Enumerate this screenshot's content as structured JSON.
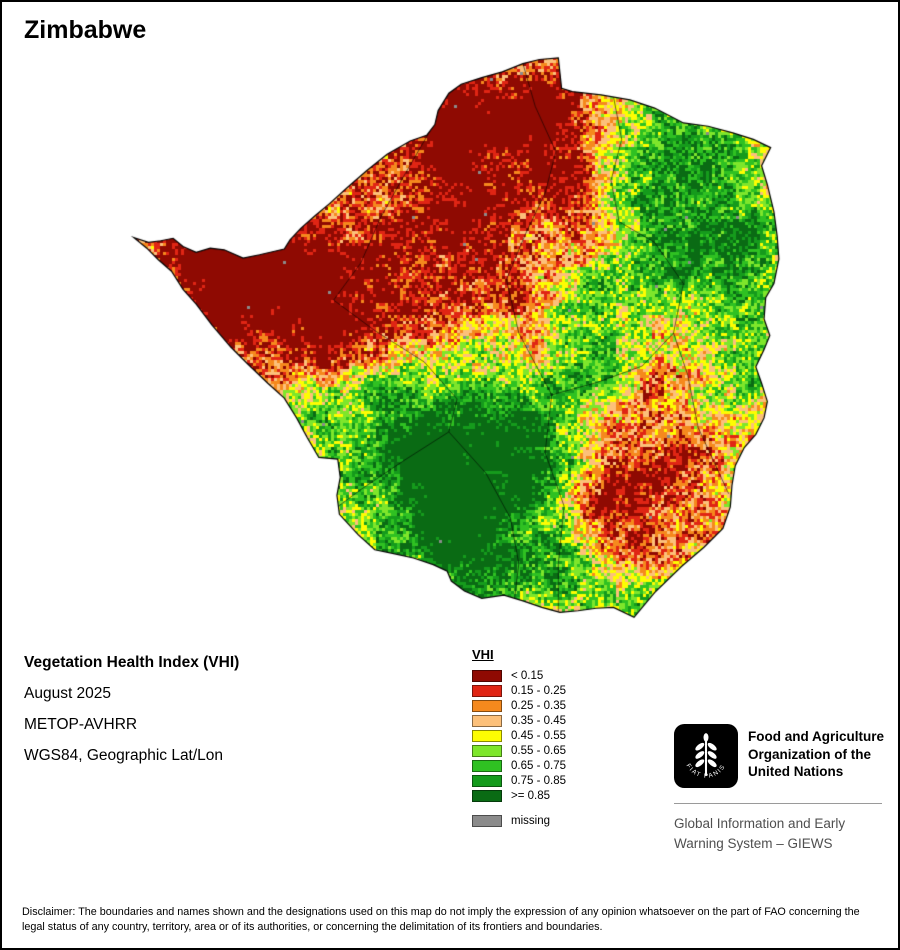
{
  "page": {
    "title": "Zimbabwe"
  },
  "info": {
    "layer_title": "Vegetation Health Index (VHI)",
    "date": "August 2025",
    "sensor": "METOP-AVHRR",
    "projection": "WGS84, Geographic Lat/Lon"
  },
  "legend": {
    "title": "VHI",
    "items": [
      {
        "label": "< 0.15",
        "color": "#8f0a02"
      },
      {
        "label": "0.15 - 0.25",
        "color": "#e02514"
      },
      {
        "label": "0.25 - 0.35",
        "color": "#f5891d"
      },
      {
        "label": "0.35 - 0.45",
        "color": "#fcc07a"
      },
      {
        "label": "0.45 - 0.55",
        "color": "#fdfd02"
      },
      {
        "label": "0.55 - 0.65",
        "color": "#7ee62b"
      },
      {
        "label": "0.65 - 0.75",
        "color": "#2fc122"
      },
      {
        "label": "0.75 - 0.85",
        "color": "#159b1c"
      },
      {
        "label": ">= 0.85",
        "color": "#0a6b14"
      }
    ],
    "missing": {
      "label": "missing",
      "color": "#8b8b8b"
    }
  },
  "branding": {
    "logo_motto": "FIAT PANIS",
    "org_lines": [
      "Food and Agriculture",
      "Organization of the",
      "United Nations"
    ],
    "giews_lines": [
      "Global Information and Early",
      "Warning System – GIEWS"
    ]
  },
  "disclaimer": "Disclaimer: The boundaries and names shown and the designations used on this map do not imply the expression of any opinion whatsoever on the part of FAO concerning the legal status of any country, territory, area or of its authorities, or concerning the delimitation of its frontiers and boundaries."
}
